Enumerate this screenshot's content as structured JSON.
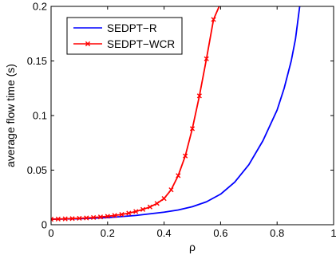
{
  "chart_data": {
    "type": "line",
    "xlabel": "ρ",
    "ylabel": "average flow time (s)",
    "xlim": [
      0,
      1
    ],
    "ylim": [
      0,
      0.2
    ],
    "x_ticks": [
      0,
      0.2,
      0.4,
      0.6,
      0.8,
      1
    ],
    "x_tick_labels": [
      "0",
      "0.2",
      "0.4",
      "0.6",
      "0.8",
      "1"
    ],
    "y_ticks": [
      0,
      0.05,
      0.1,
      0.15,
      0.2
    ],
    "y_tick_labels": [
      "0",
      "0.05",
      "0.1",
      "0.15",
      "0.2"
    ],
    "grid": false,
    "legend_position": "top-left",
    "series": [
      {
        "name": "SEDPT−R",
        "color": "#0000ff",
        "marker": "none",
        "points": [
          [
            0.0,
            0.005
          ],
          [
            0.1,
            0.0055
          ],
          [
            0.2,
            0.0065
          ],
          [
            0.3,
            0.0085
          ],
          [
            0.4,
            0.0115
          ],
          [
            0.45,
            0.0135
          ],
          [
            0.5,
            0.0165
          ],
          [
            0.55,
            0.021
          ],
          [
            0.6,
            0.028
          ],
          [
            0.65,
            0.039
          ],
          [
            0.7,
            0.055
          ],
          [
            0.75,
            0.077
          ],
          [
            0.8,
            0.105
          ],
          [
            0.825,
            0.125
          ],
          [
            0.85,
            0.15
          ],
          [
            0.865,
            0.17
          ],
          [
            0.88,
            0.2
          ]
        ]
      },
      {
        "name": "SEDPT−WCR",
        "color": "#ff0000",
        "marker": "x",
        "points": [
          [
            0.0,
            0.005
          ],
          [
            0.025,
            0.0052
          ],
          [
            0.05,
            0.0054
          ],
          [
            0.075,
            0.0056
          ],
          [
            0.1,
            0.0059
          ],
          [
            0.125,
            0.0062
          ],
          [
            0.15,
            0.0066
          ],
          [
            0.175,
            0.0071
          ],
          [
            0.2,
            0.0077
          ],
          [
            0.225,
            0.0085
          ],
          [
            0.25,
            0.0094
          ],
          [
            0.275,
            0.0106
          ],
          [
            0.3,
            0.0121
          ],
          [
            0.325,
            0.014
          ],
          [
            0.35,
            0.0163
          ],
          [
            0.375,
            0.0195
          ],
          [
            0.4,
            0.024
          ],
          [
            0.425,
            0.032
          ],
          [
            0.45,
            0.045
          ],
          [
            0.475,
            0.063
          ],
          [
            0.5,
            0.088
          ],
          [
            0.525,
            0.118
          ],
          [
            0.55,
            0.152
          ],
          [
            0.575,
            0.188
          ]
        ],
        "line_end": [
          0.595,
          0.2
        ]
      }
    ]
  }
}
